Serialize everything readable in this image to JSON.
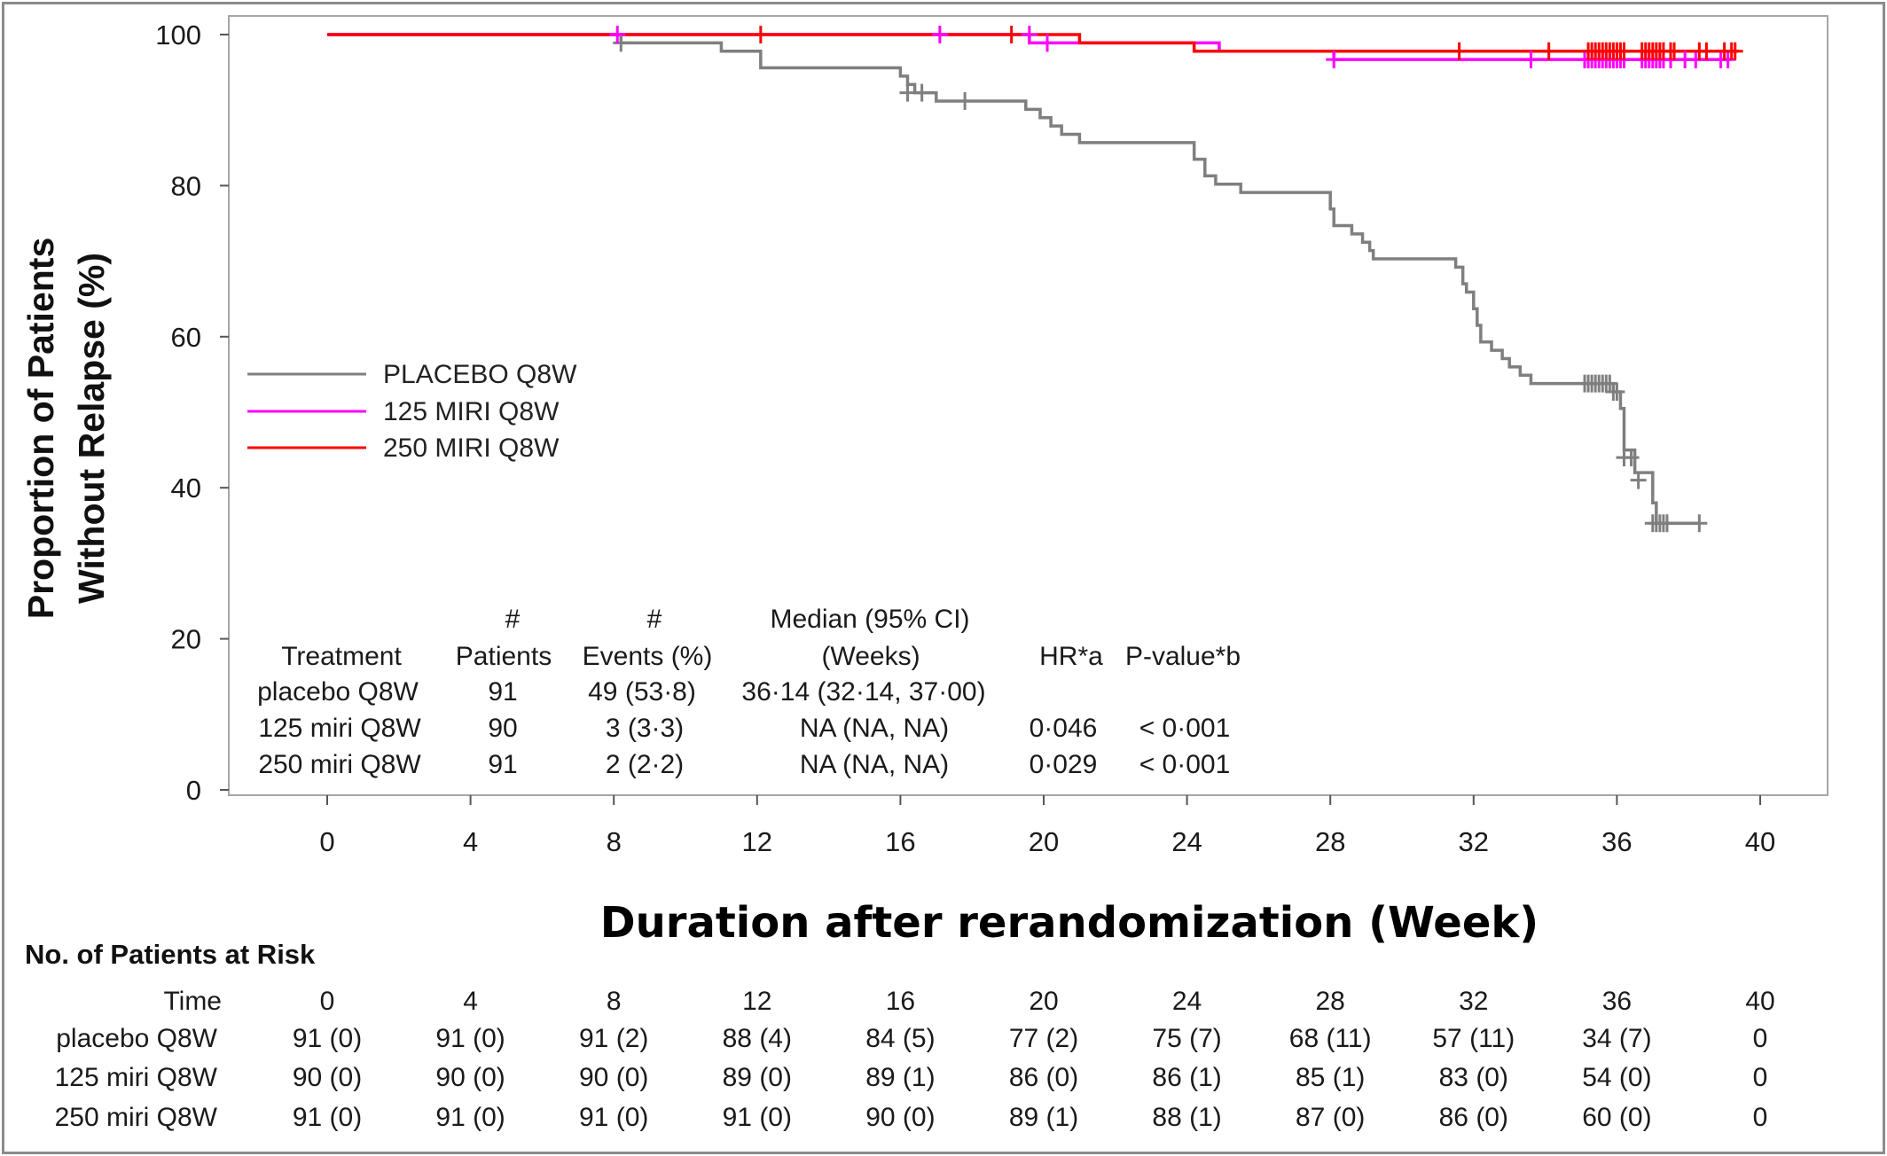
{
  "chart_data": {
    "type": "line",
    "subtype": "kaplan-meier step curve",
    "ylabel_line1": "Proportion of Patients",
    "ylabel_line2": "Without Relapse (%)",
    "xlabel": "Duration after rerandomization (Week)",
    "xlim": [
      -3,
      42
    ],
    "ylim": [
      -1,
      102
    ],
    "xticks": [
      0,
      4,
      8,
      12,
      16,
      20,
      24,
      28,
      32,
      36,
      40
    ],
    "yticks": [
      0,
      20,
      40,
      60,
      80,
      100
    ],
    "grid": false,
    "legend_position": "left-middle",
    "series": [
      {
        "name": "PLACEBO Q8W",
        "color": "#7f7f7f",
        "steps": [
          [
            0,
            100
          ],
          [
            8.2,
            98.9
          ],
          [
            11,
            97.8
          ],
          [
            12.1,
            95.6
          ],
          [
            16,
            94.5
          ],
          [
            16.2,
            93.4
          ],
          [
            16.4,
            92.3
          ],
          [
            17,
            91.2
          ],
          [
            19.5,
            90.1
          ],
          [
            19.9,
            89
          ],
          [
            20.2,
            87.9
          ],
          [
            20.5,
            86.8
          ],
          [
            21,
            85.7
          ],
          [
            24.2,
            83.5
          ],
          [
            24.5,
            81.3
          ],
          [
            24.8,
            80.2
          ],
          [
            25.5,
            79.1
          ],
          [
            28,
            76.9
          ],
          [
            28.1,
            74.7
          ],
          [
            28.6,
            73.6
          ],
          [
            28.9,
            72.5
          ],
          [
            29.1,
            71.4
          ],
          [
            29.2,
            70.3
          ],
          [
            31.5,
            69.2
          ],
          [
            31.7,
            67
          ],
          [
            31.8,
            65.9
          ],
          [
            32,
            63.7
          ],
          [
            32.1,
            61.5
          ],
          [
            32.2,
            59.3
          ],
          [
            32.5,
            58.2
          ],
          [
            32.8,
            57.1
          ],
          [
            33,
            56
          ],
          [
            33.3,
            54.9
          ],
          [
            33.6,
            53.8
          ],
          [
            35.9,
            52.7
          ],
          [
            36.1,
            50.5
          ],
          [
            36.2,
            45
          ],
          [
            36.5,
            42
          ],
          [
            37,
            38
          ],
          [
            37.1,
            35.3
          ],
          [
            38.3,
            35.3
          ]
        ],
        "censor_x": [
          8.2,
          16.2,
          16.6,
          17.8,
          35.1,
          35.2,
          35.3,
          35.4,
          35.5,
          35.6,
          35.7,
          35.8,
          35.9,
          36.0,
          36.2,
          36.4,
          36.6,
          37.0,
          37.1,
          37.2,
          37.3,
          37.4,
          38.3
        ],
        "censor_y": [
          98.9,
          92.3,
          92.3,
          91.2,
          53.8,
          53.8,
          53.8,
          53.8,
          53.8,
          53.8,
          53.8,
          53.8,
          52.7,
          52.7,
          44,
          44,
          41,
          35.3,
          35.3,
          35.3,
          35.3,
          35.3,
          35.3
        ]
      },
      {
        "name": "125 MIRI Q8W",
        "color": "#ff00ff",
        "steps": [
          [
            0,
            100
          ],
          [
            19.6,
            98.9
          ],
          [
            24.9,
            97.8
          ],
          [
            28.1,
            96.7
          ],
          [
            39.2,
            96.7
          ]
        ],
        "censor_x": [
          8.1,
          17.1,
          19.6,
          20.1,
          28.1,
          33.6,
          35.1,
          35.2,
          35.3,
          35.4,
          35.5,
          35.6,
          35.7,
          35.8,
          35.9,
          36.0,
          36.1,
          36.2,
          36.7,
          36.8,
          36.9,
          37.0,
          37.1,
          37.2,
          37.3,
          37.5,
          37.9,
          38.2,
          38.9,
          39.1
        ],
        "censor_y": [
          100,
          100,
          100,
          98.9,
          96.7,
          96.7,
          96.7,
          96.7,
          96.7,
          96.7,
          96.7,
          96.7,
          96.7,
          96.7,
          96.7,
          96.7,
          96.7,
          96.7,
          96.7,
          96.7,
          96.7,
          96.7,
          96.7,
          96.7,
          96.7,
          96.7,
          96.7,
          96.7,
          96.7,
          96.7
        ]
      },
      {
        "name": "250 MIRI Q8W",
        "color": "#ff0000",
        "steps": [
          [
            0,
            100
          ],
          [
            21,
            98.9
          ],
          [
            24.2,
            97.8
          ],
          [
            39.4,
            97.8
          ]
        ],
        "censor_x": [
          12.1,
          19.1,
          31.6,
          34.1,
          35.2,
          35.3,
          35.4,
          35.5,
          35.6,
          35.7,
          35.8,
          35.9,
          36.0,
          36.1,
          36.2,
          36.7,
          36.8,
          36.9,
          37.0,
          37.1,
          37.2,
          37.3,
          37.5,
          37.6,
          38.3,
          38.5,
          39.0,
          39.2,
          39.3
        ],
        "censor_y": [
          100,
          100,
          97.8,
          97.8,
          97.8,
          97.8,
          97.8,
          97.8,
          97.8,
          97.8,
          97.8,
          97.8,
          97.8,
          97.8,
          97.8,
          97.8,
          97.8,
          97.8,
          97.8,
          97.8,
          97.8,
          97.8,
          97.8,
          97.8,
          97.8,
          97.8,
          97.8,
          97.8,
          97.8
        ]
      }
    ],
    "summary_table": {
      "header_line1": [
        "",
        "#",
        "#",
        "Median (95% CI)",
        "",
        ""
      ],
      "header_line2": [
        "Treatment",
        "Patients",
        "Events (%)",
        "(Weeks)",
        "HR*a",
        "P-value*b"
      ],
      "rows": [
        [
          "placebo Q8W",
          "91",
          "49 (53·8)",
          "36·14 (32·14, 37·00)",
          "",
          ""
        ],
        [
          "125 miri Q8W",
          "90",
          "3  (3·3)",
          "NA (NA, NA)",
          "0·046",
          "< 0·001"
        ],
        [
          "250 miri Q8W",
          "91",
          "2  (2·2)",
          "NA (NA, NA)",
          "0·029",
          "< 0·001"
        ]
      ]
    },
    "risk_table": {
      "title": "No. of Patients at Risk",
      "time_label": "Time",
      "times": [
        "0",
        "4",
        "8",
        "12",
        "16",
        "20",
        "24",
        "28",
        "32",
        "36",
        "40"
      ],
      "rows": [
        {
          "label": "placebo Q8W",
          "values": [
            "91 (0)",
            "91 (0)",
            "91 (2)",
            "88 (4)",
            "84 (5)",
            "77 (2)",
            "75 (7)",
            "68 (11)",
            "57 (11)",
            "34 (7)",
            "0"
          ]
        },
        {
          "label": "125 miri Q8W",
          "values": [
            "90 (0)",
            "90 (0)",
            "90 (0)",
            "89 (0)",
            "89 (1)",
            "86 (0)",
            "86 (1)",
            "85 (1)",
            "83 (0)",
            "54 (0)",
            "0"
          ]
        },
        {
          "label": "250 miri Q8W",
          "values": [
            "91 (0)",
            "91 (0)",
            "91 (0)",
            "91 (0)",
            "90 (0)",
            "89 (1)",
            "88 (1)",
            "87 (0)",
            "86 (0)",
            "60 (0)",
            "0"
          ]
        }
      ]
    }
  }
}
